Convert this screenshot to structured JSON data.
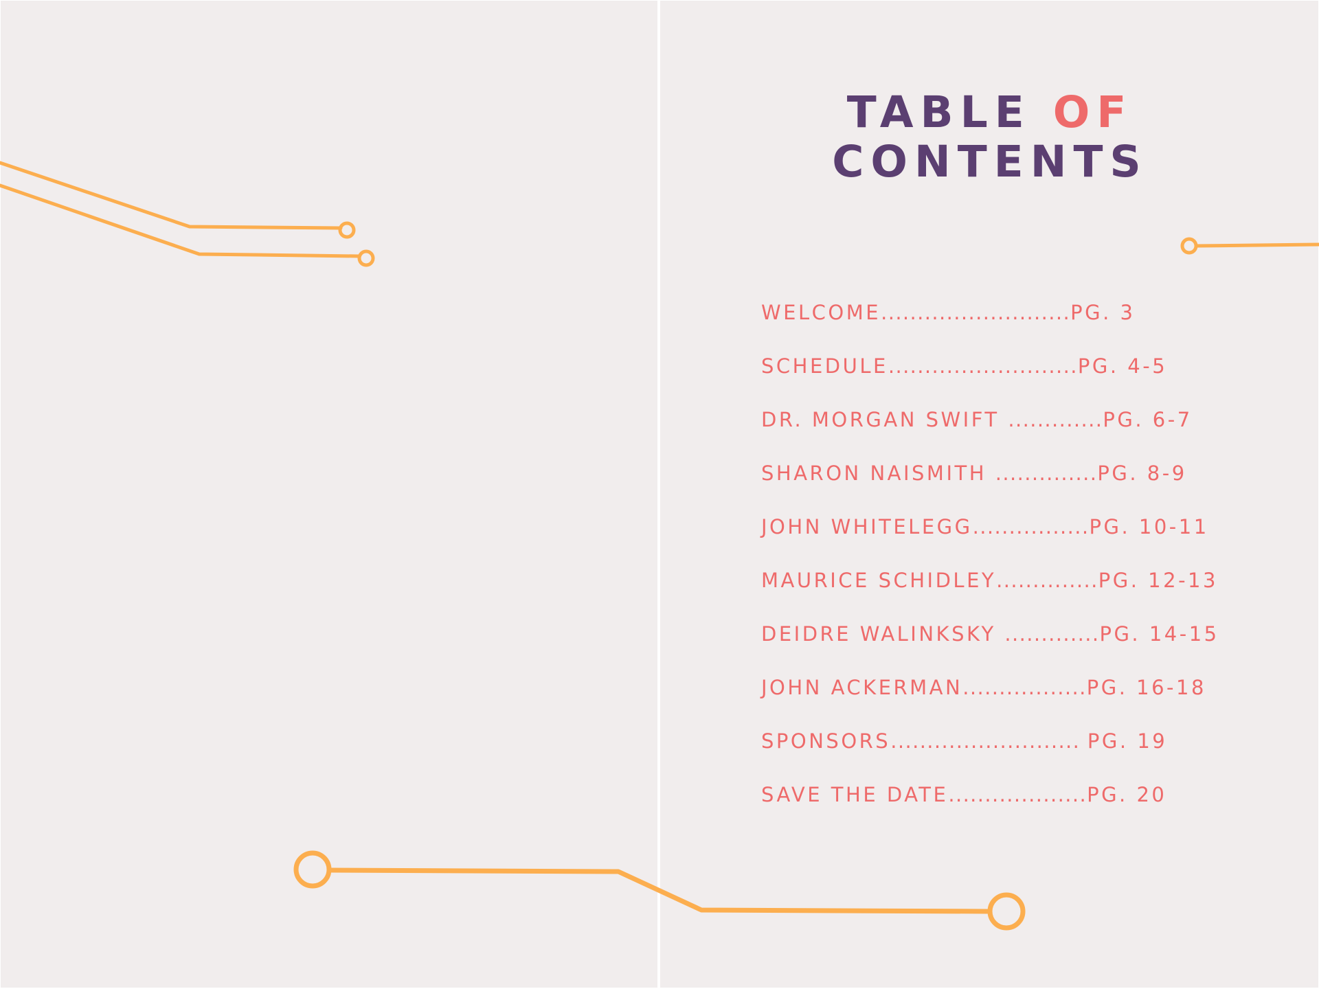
{
  "colors": {
    "paper": "#f1eded",
    "title": "#5b3f71",
    "accent": "#ee6a6a",
    "circuit": "#fcae4f"
  },
  "title": {
    "line1_main": "TABLE ",
    "line1_accent": "OF",
    "line2": "CONTENTS"
  },
  "toc": {
    "entries": [
      {
        "label": "WELCOME",
        "dots": "..........................",
        "page": "PG. 3"
      },
      {
        "label": "SCHEDULE",
        "dots": "..........................",
        "page": "PG. 4-5"
      },
      {
        "label": "DR. MORGAN SWIFT ",
        "dots": ".............",
        "page": "PG. 6-7"
      },
      {
        "label": "SHARON NAISMITH ",
        "dots": "..............",
        "page": "PG. 8-9"
      },
      {
        "label": "JOHN WHITELEGG",
        "dots": "................",
        "page": "PG. 10-11"
      },
      {
        "label": "MAURICE SCHIDLEY",
        "dots": "..............",
        "page": "PG. 12-13"
      },
      {
        "label": "DEIDRE WALINKSKY ",
        "dots": ".............",
        "page": "PG. 14-15"
      },
      {
        "label": "JOHN ACKERMAN",
        "dots": ".................",
        "page": "PG. 16-18"
      },
      {
        "label": "SPONSORS",
        "dots": ".......................... ",
        "page": "PG. 19"
      },
      {
        "label": "SAVE THE DATE",
        "dots": "...................",
        "page": "PG. 20"
      }
    ]
  }
}
